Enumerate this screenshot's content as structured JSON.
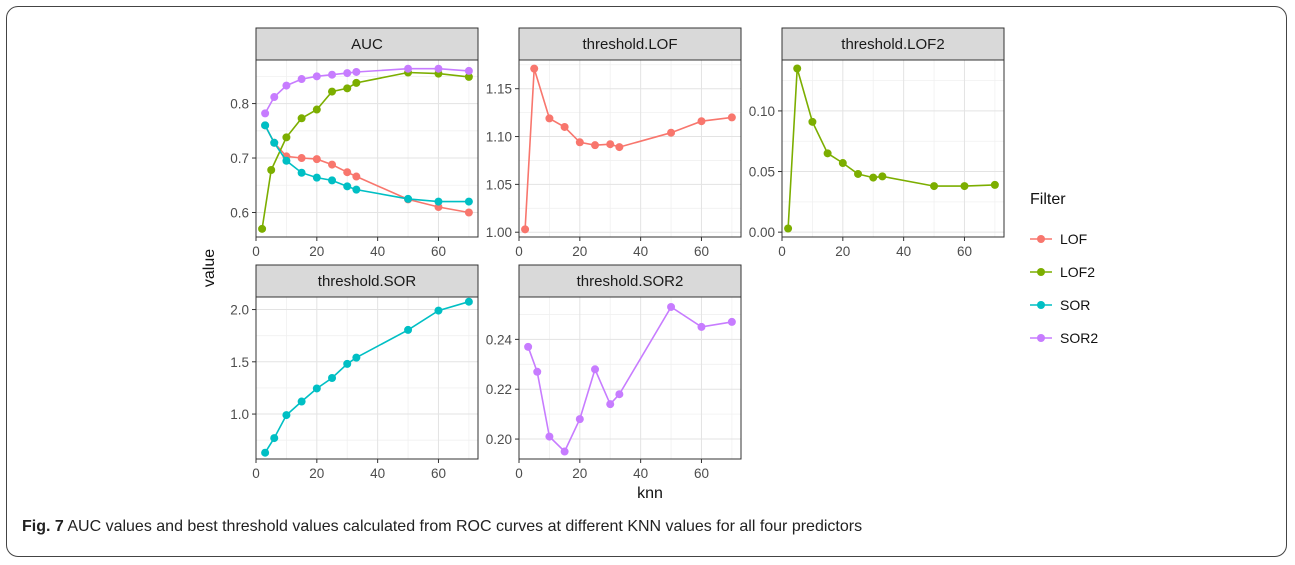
{
  "chart_data": {
    "type": "line",
    "xlabel": "knn",
    "ylabel": "value",
    "legend": {
      "title": "Filter",
      "placement": "right",
      "entries": [
        {
          "name": "LOF",
          "color": "#F8766D"
        },
        {
          "name": "LOF2",
          "color": "#7CAE00"
        },
        {
          "name": "SOR",
          "color": "#00BFC4"
        },
        {
          "name": "SOR2",
          "color": "#C77CFF"
        }
      ]
    },
    "grid": true,
    "panels": [
      {
        "id": "auc",
        "title": "AUC",
        "xlim": [
          0,
          73
        ],
        "ylim": [
          0.555,
          0.88
        ],
        "xticks": [
          0,
          20,
          40,
          60
        ],
        "yticks": [
          0.6,
          0.7,
          0.8
        ],
        "yticklabels": [
          "0.6",
          "0.7",
          "0.8"
        ],
        "show_xticks": true,
        "series": [
          {
            "name": "LOF",
            "color": "#F8766D",
            "x": [
              3,
              6,
              10,
              15,
              20,
              25,
              30,
              33,
              50,
              60,
              70
            ],
            "y": [
              0.76,
              0.728,
              0.703,
              0.7,
              0.698,
              0.688,
              0.674,
              0.666,
              0.624,
              0.61,
              0.6
            ]
          },
          {
            "name": "LOF2",
            "color": "#7CAE00",
            "x": [
              2,
              5,
              10,
              15,
              20,
              25,
              30,
              33,
              50,
              60,
              70
            ],
            "y": [
              0.57,
              0.678,
              0.738,
              0.773,
              0.789,
              0.822,
              0.828,
              0.838,
              0.857,
              0.855,
              0.849
            ]
          },
          {
            "name": "SOR",
            "color": "#00BFC4",
            "x": [
              3,
              6,
              10,
              15,
              20,
              25,
              30,
              33,
              50,
              60,
              70
            ],
            "y": [
              0.76,
              0.728,
              0.695,
              0.673,
              0.664,
              0.659,
              0.648,
              0.642,
              0.625,
              0.62,
              0.62
            ]
          },
          {
            "name": "SOR2",
            "color": "#C77CFF",
            "x": [
              3,
              6,
              10,
              15,
              20,
              25,
              30,
              33,
              50,
              60,
              70
            ],
            "y": [
              0.782,
              0.812,
              0.833,
              0.845,
              0.85,
              0.853,
              0.856,
              0.858,
              0.864,
              0.864,
              0.86
            ]
          }
        ]
      },
      {
        "id": "threshold-lof",
        "title": "threshold.LOF",
        "xlim": [
          0,
          73
        ],
        "ylim": [
          0.995,
          1.18
        ],
        "xticks": [
          0,
          20,
          40,
          60
        ],
        "yticks": [
          1.0,
          1.05,
          1.1,
          1.15
        ],
        "yticklabels": [
          "1.00",
          "1.05",
          "1.10",
          "1.15"
        ],
        "show_xticks": true,
        "series": [
          {
            "name": "LOF",
            "color": "#F8766D",
            "x": [
              2,
              5,
              10,
              15,
              20,
              25,
              30,
              33,
              50,
              60,
              70
            ],
            "y": [
              1.003,
              1.171,
              1.119,
              1.11,
              1.094,
              1.091,
              1.092,
              1.089,
              1.104,
              1.116,
              1.12
            ]
          }
        ]
      },
      {
        "id": "threshold-lof2",
        "title": "threshold.LOF2",
        "xlim": [
          0,
          73
        ],
        "ylim": [
          -0.004,
          0.142
        ],
        "xticks": [
          0,
          20,
          40,
          60
        ],
        "yticks": [
          0.0,
          0.05,
          0.1
        ],
        "yticklabels": [
          "0.00",
          "0.05",
          "0.10"
        ],
        "show_xticks": true,
        "series": [
          {
            "name": "LOF2",
            "color": "#7CAE00",
            "x": [
              2,
              5,
              10,
              15,
              20,
              25,
              30,
              33,
              50,
              60,
              70
            ],
            "y": [
              0.003,
              0.135,
              0.091,
              0.065,
              0.057,
              0.048,
              0.045,
              0.046,
              0.038,
              0.038,
              0.039
            ]
          }
        ]
      },
      {
        "id": "threshold-sor",
        "title": "threshold.SOR",
        "xlim": [
          0,
          73
        ],
        "ylim": [
          0.57,
          2.12
        ],
        "xticks": [
          0,
          20,
          40,
          60
        ],
        "yticks": [
          1.0,
          1.5,
          2.0
        ],
        "yticklabels": [
          "1.0",
          "1.5",
          "2.0"
        ],
        "show_xticks": true,
        "series": [
          {
            "name": "SOR",
            "color": "#00BFC4",
            "x": [
              3,
              6,
              10,
              15,
              20,
              25,
              30,
              33,
              50,
              60,
              70
            ],
            "y": [
              0.63,
              0.77,
              0.99,
              1.12,
              1.245,
              1.345,
              1.48,
              1.54,
              1.805,
              1.99,
              2.075
            ]
          }
        ]
      },
      {
        "id": "threshold-sor2",
        "title": "threshold.SOR2",
        "xlim": [
          0,
          73
        ],
        "ylim": [
          0.192,
          0.257
        ],
        "xticks": [
          0,
          20,
          40,
          60
        ],
        "yticks": [
          0.2,
          0.22,
          0.24
        ],
        "yticklabels": [
          "0.20",
          "0.22",
          "0.24"
        ],
        "show_xticks": true,
        "series": [
          {
            "name": "SOR2",
            "color": "#C77CFF",
            "x": [
              3,
              6,
              10,
              15,
              20,
              25,
              30,
              33,
              50,
              60,
              70
            ],
            "y": [
              0.237,
              0.227,
              0.201,
              0.195,
              0.208,
              0.228,
              0.214,
              0.218,
              0.253,
              0.245,
              0.247
            ]
          }
        ]
      }
    ]
  },
  "caption": {
    "label": "Fig. 7",
    "text": " AUC values and best threshold values calculated from ROC curves at different KNN values for all four predictors"
  }
}
